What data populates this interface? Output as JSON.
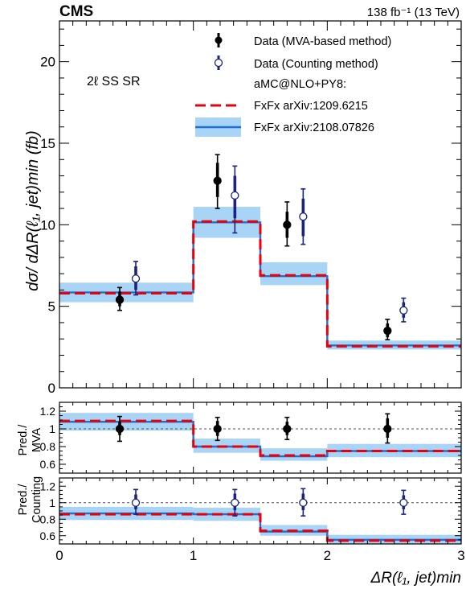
{
  "header": {
    "experiment": "CMS",
    "lumi_label": "138 fb⁻¹ (13 TeV)"
  },
  "region_label": "2ℓ SS SR",
  "legend": {
    "data_mva": "Data (MVA-based method)",
    "data_counting": "Data (Counting method)",
    "generator": "aMC@NLO+PY8:",
    "fxfx_1209": "FxFx arXiv:1209.6215",
    "fxfx_2108": "FxFx arXiv:2108.07826"
  },
  "axes": {
    "y_main_label": "dσ/ dΔR(ℓ₁, jet)min (fb)",
    "y_ratio1_label_line1": "Pred./",
    "y_ratio1_label_line2": "MVA",
    "y_ratio2_label_line1": "Pred./",
    "y_ratio2_label_line2": "Counting",
    "x_label": "ΔR(ℓ₁, jet)min"
  },
  "colors": {
    "data_mva": "#000000",
    "data_counting": "#1a237e",
    "fxfx_1209": "#e8000b",
    "fxfx_2108": "#1f6fd6",
    "uncertainty_band": "#a8d4f5"
  },
  "chart_data": [
    {
      "type": "line",
      "panel": "main",
      "bins": [
        [
          0,
          1
        ],
        [
          1,
          1.5
        ],
        [
          1.5,
          2
        ],
        [
          2,
          3
        ]
      ],
      "xlim": [
        0,
        3
      ],
      "ylim": [
        0,
        22.5
      ],
      "yticks": [
        0,
        5,
        10,
        15,
        20
      ],
      "series": [
        {
          "name": "FxFx arXiv:2108.07826",
          "values": [
            5.85,
            10.15,
            6.85,
            2.6
          ],
          "band": [
            [
              5.25,
              6.45
            ],
            [
              9.2,
              11.1
            ],
            [
              6.3,
              7.7
            ],
            [
              2.35,
              2.9
            ]
          ]
        },
        {
          "name": "FxFx arXiv:1209.6215",
          "values": [
            5.8,
            10.2,
            6.9,
            2.55
          ]
        },
        {
          "name": "Data (MVA-based method)",
          "x": [
            0.45,
            1.18,
            1.7,
            2.45
          ],
          "y": [
            5.4,
            12.7,
            10.0,
            3.5
          ],
          "yerr_stat": [
            [
              5.0,
              5.9
            ],
            [
              11.7,
              13.8
            ],
            [
              9.2,
              10.8
            ],
            [
              3.1,
              3.95
            ]
          ],
          "yerr_tot": [
            [
              4.75,
              6.15
            ],
            [
              11.0,
              14.3
            ],
            [
              8.7,
              11.4
            ],
            [
              2.95,
              4.2
            ]
          ]
        },
        {
          "name": "Data (Counting method)",
          "x": [
            0.57,
            1.31,
            1.82,
            2.57
          ],
          "y": [
            6.7,
            11.8,
            10.5,
            4.75
          ],
          "yerr_stat": [
            [
              6.0,
              7.45
            ],
            [
              10.4,
              13.0
            ],
            [
              9.3,
              11.6
            ],
            [
              4.3,
              5.25
            ]
          ],
          "yerr_tot": [
            [
              5.7,
              7.75
            ],
            [
              9.5,
              13.6
            ],
            [
              8.8,
              12.2
            ],
            [
              4.05,
              5.5
            ]
          ]
        }
      ]
    },
    {
      "type": "line",
      "panel": "ratio_mva",
      "ylim": [
        0.5,
        1.3
      ],
      "yticks": [
        0.6,
        0.8,
        1.0,
        1.2
      ],
      "ytick_labels": [
        "0.6",
        "0.8",
        "1",
        "1.2"
      ],
      "reference_line": 1.0,
      "series": [
        {
          "name": "FxFx arXiv:2108.07826",
          "values": [
            1.08,
            0.8,
            0.69,
            0.75
          ],
          "band": [
            [
              0.98,
              1.18
            ],
            [
              0.73,
              0.89
            ],
            [
              0.64,
              0.78
            ],
            [
              0.68,
              0.83
            ]
          ]
        },
        {
          "name": "FxFx arXiv:1209.6215",
          "values": [
            1.09,
            0.8,
            0.7,
            0.75
          ]
        },
        {
          "name": "Data (MVA-based method)",
          "x": [
            0.45,
            1.18,
            1.7,
            2.45
          ],
          "y": [
            1.0,
            1.0,
            1.0,
            1.0
          ],
          "yerr_stat": [
            [
              0.93,
              1.08
            ],
            [
              0.92,
              1.09
            ],
            [
              0.93,
              1.08
            ],
            [
              0.9,
              1.12
            ]
          ],
          "yerr_tot": [
            [
              0.86,
              1.14
            ],
            [
              0.87,
              1.13
            ],
            [
              0.88,
              1.13
            ],
            [
              0.84,
              1.17
            ]
          ]
        }
      ]
    },
    {
      "type": "line",
      "panel": "ratio_counting",
      "ylim": [
        0.5,
        1.3
      ],
      "yticks": [
        0.6,
        0.8,
        1.0,
        1.2
      ],
      "ytick_labels": [
        "0.6",
        "0.8",
        "1",
        "1.2"
      ],
      "reference_line": 1.0,
      "series": [
        {
          "name": "FxFx arXiv:2108.07826",
          "values": [
            0.87,
            0.86,
            0.65,
            0.55
          ],
          "band": [
            [
              0.79,
              0.95
            ],
            [
              0.78,
              0.94
            ],
            [
              0.6,
              0.73
            ],
            [
              0.5,
              0.61
            ]
          ]
        },
        {
          "name": "FxFx arXiv:1209.6215",
          "values": [
            0.86,
            0.86,
            0.66,
            0.54
          ]
        },
        {
          "name": "Data (Counting method)",
          "x": [
            0.57,
            1.31,
            1.82,
            2.57
          ],
          "y": [
            1.0,
            1.0,
            1.0,
            1.0
          ],
          "yerr_stat": [
            [
              0.92,
              1.1
            ],
            [
              0.91,
              1.11
            ],
            [
              0.91,
              1.11
            ],
            [
              0.92,
              1.09
            ]
          ],
          "yerr_tot": [
            [
              0.86,
              1.16
            ],
            [
              0.84,
              1.16
            ],
            [
              0.84,
              1.17
            ],
            [
              0.86,
              1.15
            ]
          ]
        }
      ]
    }
  ],
  "x_ticks": [
    0,
    1,
    2,
    3
  ],
  "x_tick_labels": [
    "0",
    "1",
    "2",
    "3"
  ]
}
